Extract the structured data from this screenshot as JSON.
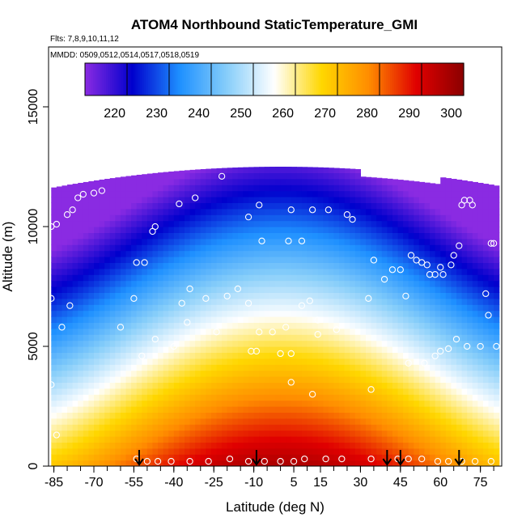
{
  "chart_data": {
    "type": "heatmap",
    "title": "ATOM4 Northbound StaticTemperature_GMI",
    "subtitle_flights": "Flts: 7,8,9,10,11,12",
    "subtitle_dates": "MMDD: 0509,0512,0514,0517,0518,0519",
    "xlabel": "Latitude (deg N)",
    "ylabel": "Altitude (m)",
    "xlim": [
      -87,
      83
    ],
    "ylim": [
      0,
      17500
    ],
    "x_ticks": [
      -85,
      -70,
      -55,
      -40,
      -25,
      -10,
      5,
      15,
      30,
      45,
      60,
      75
    ],
    "y_ticks": [
      0,
      5000,
      10000,
      15000
    ],
    "colorbar": {
      "min": 210,
      "max": 300,
      "ticks": [
        220,
        230,
        240,
        250,
        260,
        270,
        280,
        290,
        300
      ],
      "colors": [
        "#8a2be2",
        "#0000cd",
        "#1e90ff",
        "#87cefa",
        "#ffffff",
        "#ffd700",
        "#ff8c00",
        "#e00000",
        "#8b0000"
      ]
    },
    "field": {
      "surface_temperature_equator": 296,
      "surface_temperature_pole": 268,
      "lapse_rate_k_per_km": 6.5,
      "top_altitude_m": 12500,
      "southern_edge_lat": -86,
      "northern_edge_lat": 82
    },
    "arrows_lat": [
      -53,
      -9,
      40,
      45,
      67
    ],
    "observation_points": [
      {
        "x": -86,
        "y": 10000
      },
      {
        "x": -84,
        "y": 10100
      },
      {
        "x": -80,
        "y": 10500
      },
      {
        "x": -78,
        "y": 10700
      },
      {
        "x": -76,
        "y": 11200
      },
      {
        "x": -74,
        "y": 11350
      },
      {
        "x": -70,
        "y": 11400
      },
      {
        "x": -67,
        "y": 11500
      },
      {
        "x": -48,
        "y": 9800
      },
      {
        "x": -47,
        "y": 10000
      },
      {
        "x": -38,
        "y": 10950
      },
      {
        "x": -32,
        "y": 11200
      },
      {
        "x": -22,
        "y": 12100
      },
      {
        "x": -12,
        "y": 10400
      },
      {
        "x": -8,
        "y": 10900
      },
      {
        "x": -7,
        "y": 9400
      },
      {
        "x": 3,
        "y": 9400
      },
      {
        "x": 8,
        "y": 9400
      },
      {
        "x": 4,
        "y": 10700
      },
      {
        "x": 12,
        "y": 10700
      },
      {
        "x": 18,
        "y": 10700
      },
      {
        "x": 25,
        "y": 10500
      },
      {
        "x": 27,
        "y": 10300
      },
      {
        "x": 35,
        "y": 8600
      },
      {
        "x": -54,
        "y": 8500
      },
      {
        "x": -51,
        "y": 8500
      },
      {
        "x": -55,
        "y": 7000
      },
      {
        "x": -34,
        "y": 7400
      },
      {
        "x": -37,
        "y": 6800
      },
      {
        "x": -28,
        "y": 7000
      },
      {
        "x": -20,
        "y": 7100
      },
      {
        "x": -16,
        "y": 7400
      },
      {
        "x": -12,
        "y": 6800
      },
      {
        "x": -8,
        "y": 5600
      },
      {
        "x": -3,
        "y": 5600
      },
      {
        "x": 2,
        "y": 5800
      },
      {
        "x": 8,
        "y": 6700
      },
      {
        "x": 11,
        "y": 6900
      },
      {
        "x": 14,
        "y": 6100
      },
      {
        "x": 33,
        "y": 7000
      },
      {
        "x": 39,
        "y": 7800
      },
      {
        "x": 42,
        "y": 8200
      },
      {
        "x": 45,
        "y": 8200
      },
      {
        "x": 47,
        "y": 7100
      },
      {
        "x": 49,
        "y": 8800
      },
      {
        "x": 51,
        "y": 8600
      },
      {
        "x": 53,
        "y": 8500
      },
      {
        "x": 55,
        "y": 8400
      },
      {
        "x": 56,
        "y": 8000
      },
      {
        "x": 58,
        "y": 8000
      },
      {
        "x": 60,
        "y": 8300
      },
      {
        "x": 61,
        "y": 8000
      },
      {
        "x": 64,
        "y": 8400
      },
      {
        "x": 65,
        "y": 8800
      },
      {
        "x": 67,
        "y": 9200
      },
      {
        "x": 68,
        "y": 10900
      },
      {
        "x": 69,
        "y": 11100
      },
      {
        "x": 71,
        "y": 11100
      },
      {
        "x": 72,
        "y": 10900
      },
      {
        "x": 77,
        "y": 7200
      },
      {
        "x": 79,
        "y": 9300
      },
      {
        "x": 80,
        "y": 9300
      },
      {
        "x": 78,
        "y": 6300
      },
      {
        "x": 75,
        "y": 5000
      },
      {
        "x": 81,
        "y": 5000
      },
      {
        "x": 70,
        "y": 5000
      },
      {
        "x": 66,
        "y": 5300
      },
      {
        "x": 63,
        "y": 4900
      },
      {
        "x": 60,
        "y": 4800
      },
      {
        "x": 58,
        "y": 4600
      },
      {
        "x": 54,
        "y": 4300
      },
      {
        "x": 48,
        "y": 4300
      },
      {
        "x": -86,
        "y": 7000
      },
      {
        "x": -82,
        "y": 5800
      },
      {
        "x": -79,
        "y": 6700
      },
      {
        "x": -60,
        "y": 5800
      },
      {
        "x": -52,
        "y": 4600
      },
      {
        "x": -47,
        "y": 5300
      },
      {
        "x": -40,
        "y": 5000
      },
      {
        "x": -35,
        "y": 6000
      },
      {
        "x": -24,
        "y": 5600
      },
      {
        "x": -11,
        "y": 4800
      },
      {
        "x": -9,
        "y": 4800
      },
      {
        "x": 0,
        "y": 4700
      },
      {
        "x": 4,
        "y": 4700
      },
      {
        "x": 14,
        "y": 5500
      },
      {
        "x": 21,
        "y": 5700
      },
      {
        "x": 34,
        "y": 3200
      },
      {
        "x": 12,
        "y": 3000
      },
      {
        "x": 4,
        "y": 3500
      },
      {
        "x": -86,
        "y": 3400
      },
      {
        "x": -84,
        "y": 1300
      },
      {
        "x": -54,
        "y": 300
      },
      {
        "x": -50,
        "y": 200
      },
      {
        "x": -46,
        "y": 200
      },
      {
        "x": -41,
        "y": 200
      },
      {
        "x": -34,
        "y": 200
      },
      {
        "x": -27,
        "y": 200
      },
      {
        "x": -19,
        "y": 300
      },
      {
        "x": -12,
        "y": 200
      },
      {
        "x": -6,
        "y": 200
      },
      {
        "x": 0,
        "y": 200
      },
      {
        "x": 5,
        "y": 200
      },
      {
        "x": 9,
        "y": 300
      },
      {
        "x": 17,
        "y": 300
      },
      {
        "x": 23,
        "y": 300
      },
      {
        "x": 34,
        "y": 300
      },
      {
        "x": 44,
        "y": 300
      },
      {
        "x": 48,
        "y": 300
      },
      {
        "x": 53,
        "y": 300
      },
      {
        "x": 59,
        "y": 200
      },
      {
        "x": 63,
        "y": 200
      },
      {
        "x": 68,
        "y": 200
      },
      {
        "x": 73,
        "y": 200
      },
      {
        "x": 79,
        "y": 200
      }
    ]
  }
}
